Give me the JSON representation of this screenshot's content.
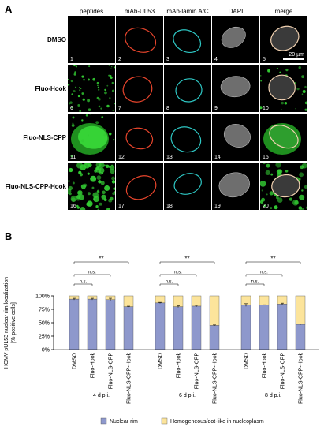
{
  "figure": {
    "panel_a_label": "A",
    "panel_b_label": "B",
    "columns": [
      "peptides",
      "mAb-UL53",
      "mAb-lamin A/C",
      "DAPI",
      "merge"
    ],
    "rows": [
      "DMSO",
      "Fluo-Hook",
      "Fluo-NLS-CPP",
      "Fluo-NLS-CPP-Hook"
    ],
    "scale_bar": "20 µm",
    "colors": {
      "green": "#33cc33",
      "red": "#e8452c",
      "cyan": "#2ec7c4",
      "gray": "#9a9a9a",
      "merge": "#f0d0b0"
    }
  },
  "chart_data": {
    "type": "bar",
    "stacked": true,
    "ylabel": "HCMV pUL53 nuclear rim localization\n[% positive cells]",
    "ylim": [
      0,
      100
    ],
    "yticks": [
      "0%",
      "25%",
      "50%",
      "75%",
      "100%"
    ],
    "groups": [
      {
        "label": "4 d p.i.",
        "categories": [
          "DMSO",
          "Fluo-Hook",
          "Fluo-NLS-CPP",
          "Fluo-NLS-CPP-Hook"
        ]
      },
      {
        "label": "6 d p.i.",
        "categories": [
          "DMSO",
          "Fluo-Hook",
          "Fluo-NLS-CPP",
          "Fluo-NLS-CPP-Hook"
        ]
      },
      {
        "label": "8 d p.i.",
        "categories": [
          "DMSO",
          "Fluo-Hook",
          "Fluo-NLS-CPP",
          "Fluo-NLS-CPP-Hook"
        ]
      }
    ],
    "series": [
      {
        "name": "Nuclear rim",
        "color": "#8e98cc",
        "values": [
          94,
          94,
          93,
          80,
          87,
          80,
          81,
          45,
          83,
          83,
          85,
          47
        ],
        "errors": [
          1.5,
          1.5,
          2.5,
          0.8,
          1,
          1.5,
          1.5,
          0.8,
          2.5,
          0.5,
          1.5,
          0.8
        ]
      },
      {
        "name": "Homogeneous/dot-like in nucleoplasm",
        "color": "#fce49b",
        "values": [
          6,
          6,
          7,
          20,
          13,
          20,
          19,
          55,
          17,
          17,
          15,
          53
        ]
      }
    ],
    "significance": [
      {
        "group": 0,
        "from": 0,
        "to": 1,
        "label": "n.s."
      },
      {
        "group": 0,
        "from": 0,
        "to": 2,
        "label": "n.s."
      },
      {
        "group": 0,
        "from": 0,
        "to": 3,
        "label": "**"
      },
      {
        "group": 1,
        "from": 0,
        "to": 1,
        "label": "n.s."
      },
      {
        "group": 1,
        "from": 0,
        "to": 2,
        "label": "n.s."
      },
      {
        "group": 1,
        "from": 0,
        "to": 3,
        "label": "**"
      },
      {
        "group": 2,
        "from": 0,
        "to": 1,
        "label": "n.s."
      },
      {
        "group": 2,
        "from": 0,
        "to": 2,
        "label": "n.s."
      },
      {
        "group": 2,
        "from": 0,
        "to": 3,
        "label": "**"
      }
    ],
    "grid": false,
    "legend": "bottom"
  }
}
